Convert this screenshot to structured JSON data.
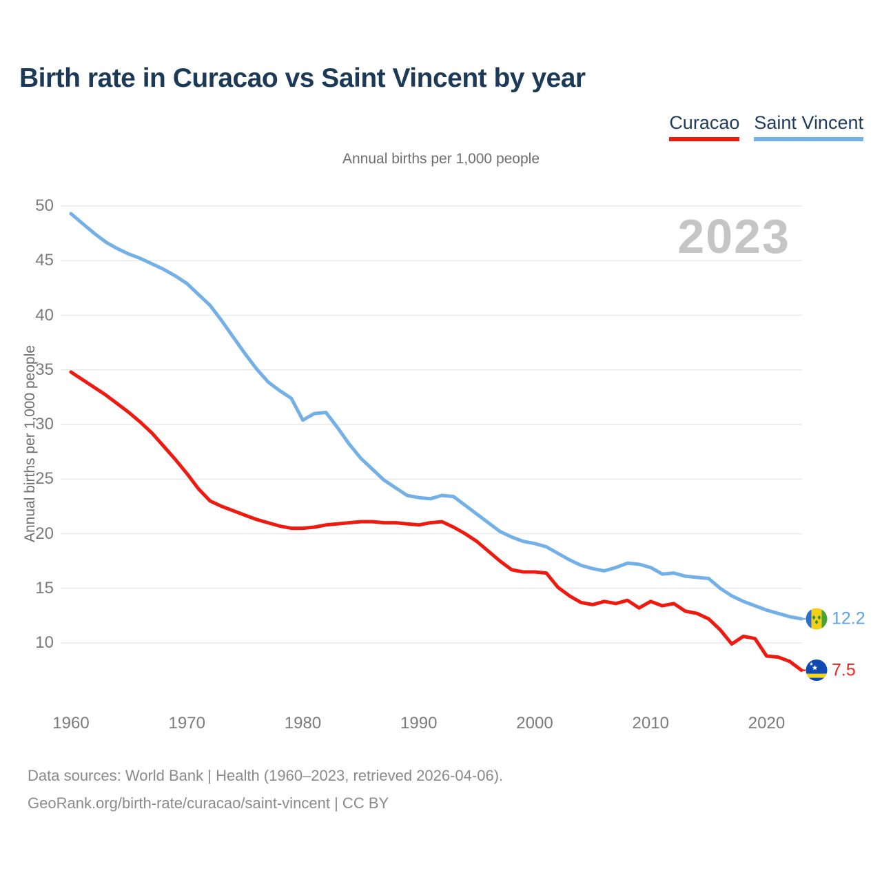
{
  "title": "Birth rate in Curacao vs Saint Vincent by year",
  "subtitle": "Annual births per 1,000 people",
  "watermark": "2023",
  "legend": [
    {
      "label": "Curacao",
      "color": "#f0190f"
    },
    {
      "label": "Saint Vincent",
      "color": "#74b0e8"
    }
  ],
  "y_axis": {
    "title": "Annual births per 1,000 people",
    "ticks": [
      50,
      45,
      40,
      35,
      30,
      25,
      20,
      15,
      10
    ]
  },
  "x_axis": {
    "ticks": [
      1960,
      1970,
      1980,
      1990,
      2000,
      2010,
      2020
    ]
  },
  "end_labels": [
    {
      "series": "Saint Vincent",
      "value": "12.2",
      "color": "#5da4e2",
      "flag": "saint-vincent"
    },
    {
      "series": "Curacao",
      "value": "7.5",
      "color": "#f2231a",
      "flag": "curacao"
    }
  ],
  "footer": {
    "line1": "Data sources: World Bank | Health (1960–2023, retrieved 2026-04-06).",
    "line2": "GeoRank.org/birth-rate/curacao/saint-vincent | CC BY"
  },
  "chart_data": {
    "type": "line",
    "title": "Birth rate in Curacao vs Saint Vincent by year",
    "ylabel": "Annual births per 1,000 people",
    "ylim": [
      7,
      50
    ],
    "grid": "horizontal",
    "x": [
      1960,
      1961,
      1962,
      1963,
      1964,
      1965,
      1966,
      1967,
      1968,
      1969,
      1970,
      1971,
      1972,
      1973,
      1974,
      1975,
      1976,
      1977,
      1978,
      1979,
      1980,
      1981,
      1982,
      1983,
      1984,
      1985,
      1986,
      1987,
      1988,
      1989,
      1990,
      1991,
      1992,
      1993,
      1994,
      1995,
      1996,
      1997,
      1998,
      1999,
      2000,
      2001,
      2002,
      2003,
      2004,
      2005,
      2006,
      2007,
      2008,
      2009,
      2010,
      2011,
      2012,
      2013,
      2014,
      2015,
      2016,
      2017,
      2018,
      2019,
      2020,
      2021,
      2022,
      2023
    ],
    "series": [
      {
        "name": "Saint Vincent",
        "color": "#74b0e8",
        "values": [
          49.3,
          48.4,
          47.5,
          46.7,
          46.1,
          45.6,
          45.2,
          44.7,
          44.2,
          43.6,
          42.9,
          41.9,
          40.9,
          39.5,
          38.0,
          36.5,
          35.1,
          33.9,
          33.1,
          32.4,
          30.4,
          31.0,
          31.1,
          29.7,
          28.2,
          26.9,
          25.9,
          24.9,
          24.2,
          23.5,
          23.3,
          23.2,
          23.5,
          23.4,
          22.6,
          21.8,
          21.0,
          20.2,
          19.7,
          19.3,
          19.1,
          18.8,
          18.2,
          17.6,
          17.1,
          16.8,
          16.6,
          16.9,
          17.3,
          17.2,
          16.9,
          16.3,
          16.4,
          16.1,
          16.0,
          15.9,
          15.0,
          14.3,
          13.8,
          13.4,
          13.0,
          12.7,
          12.4,
          12.2
        ]
      },
      {
        "name": "Curacao",
        "color": "#f0190f",
        "values": [
          34.8,
          34.1,
          33.4,
          32.7,
          31.9,
          31.1,
          30.2,
          29.2,
          28.0,
          26.8,
          25.5,
          24.1,
          23.0,
          22.5,
          22.1,
          21.7,
          21.3,
          21.0,
          20.7,
          20.5,
          20.5,
          20.6,
          20.8,
          20.9,
          21.0,
          21.1,
          21.1,
          21.0,
          21.0,
          20.9,
          20.8,
          21.0,
          21.1,
          20.6,
          20.0,
          19.3,
          18.4,
          17.5,
          16.7,
          16.5,
          16.5,
          16.4,
          15.1,
          14.3,
          13.7,
          13.5,
          13.8,
          13.6,
          13.9,
          13.2,
          13.8,
          13.4,
          13.6,
          12.9,
          12.7,
          12.2,
          11.2,
          9.9,
          10.6,
          10.4,
          8.8,
          8.7,
          8.3,
          7.5
        ]
      }
    ]
  }
}
